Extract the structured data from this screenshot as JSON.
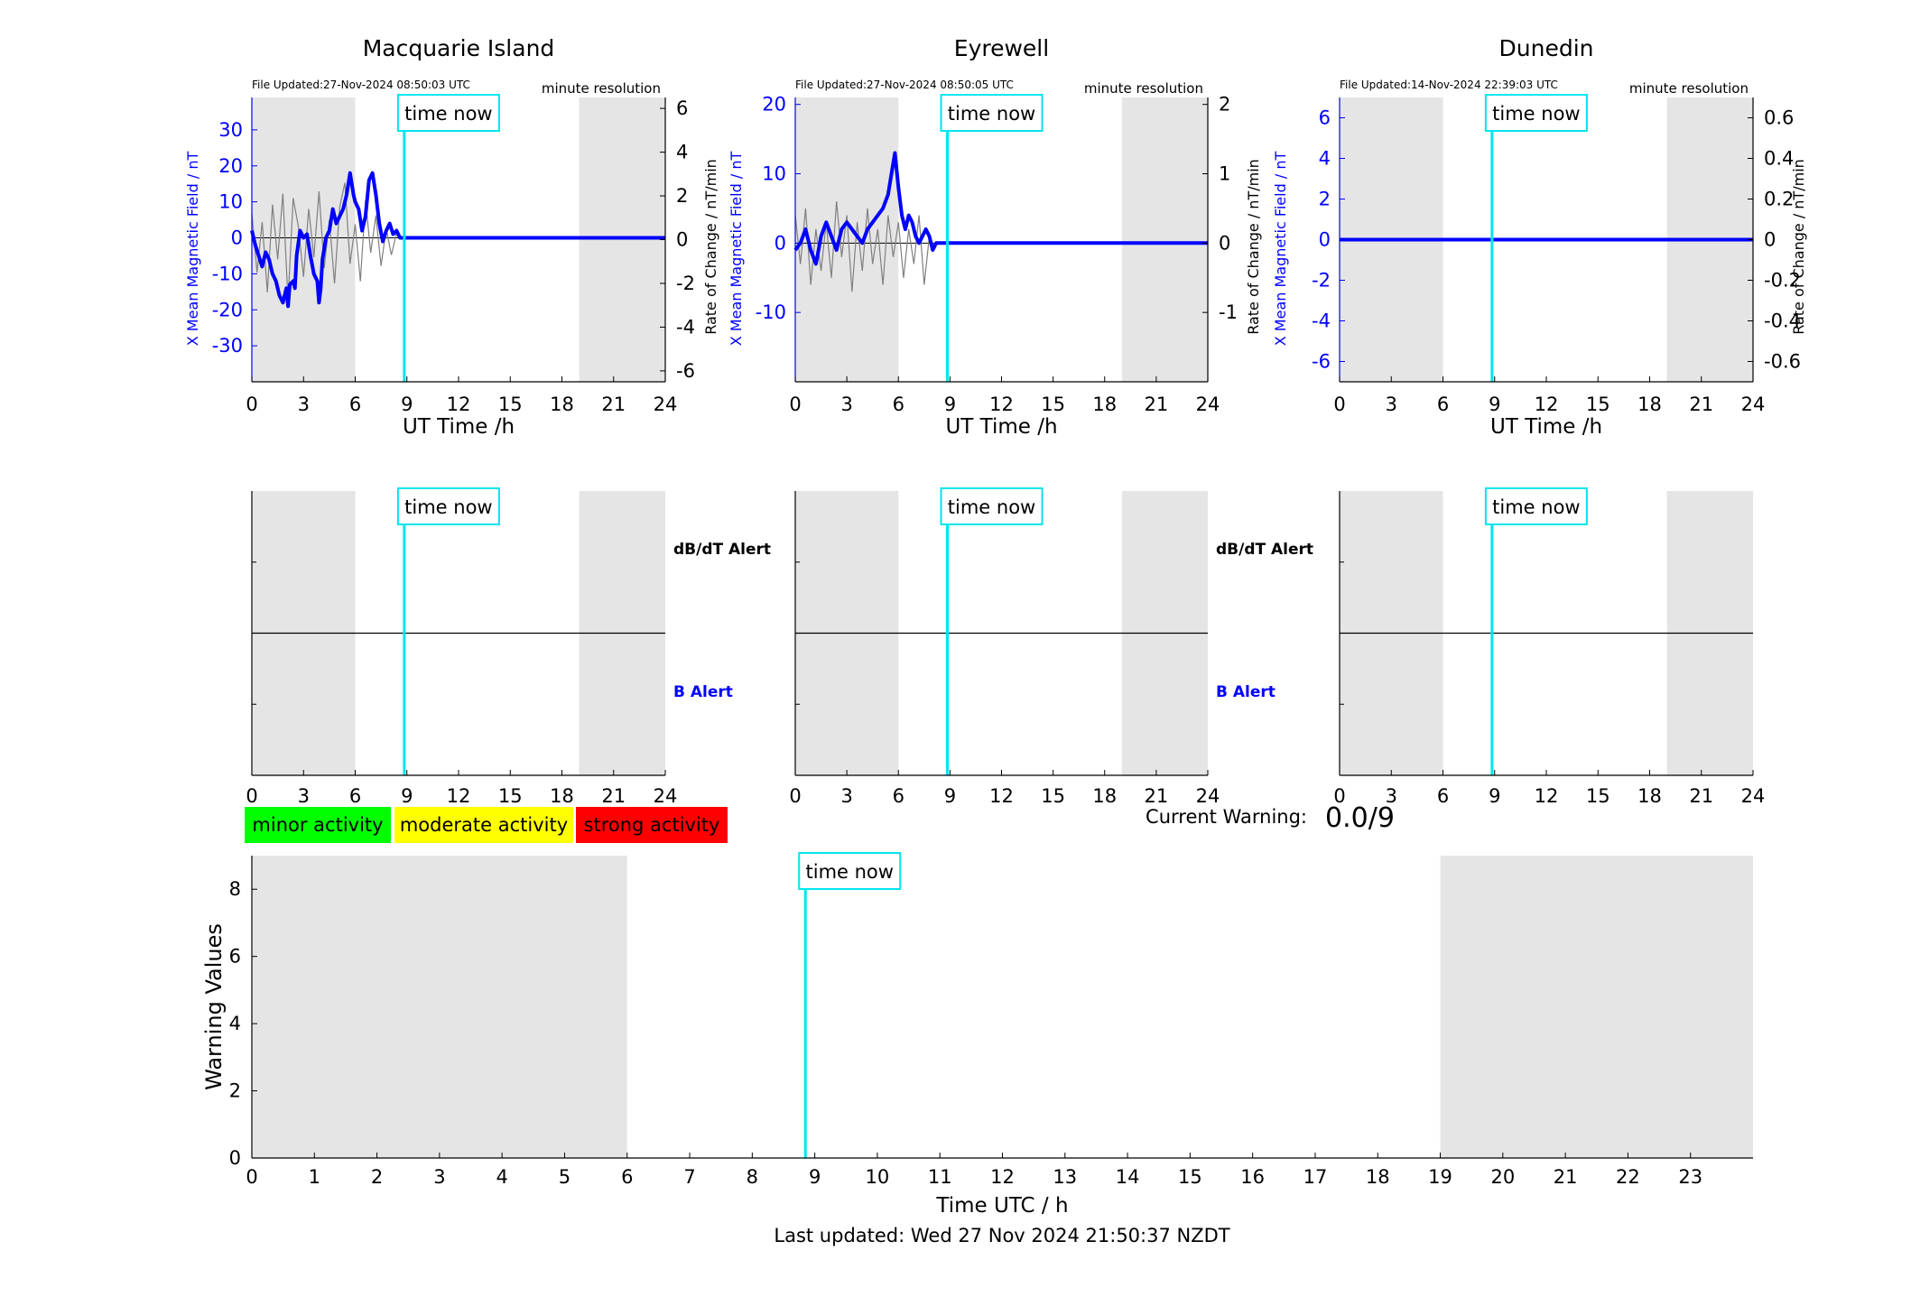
{
  "page": {
    "last_updated": "Last updated: Wed 27 Nov 2024 21:50:37 NZDT",
    "current_warning_label": "Current Warning:",
    "current_warning_value": "0.0/9"
  },
  "colors": {
    "x_field": "#0000ff",
    "rate": "#808080",
    "time_now": "#00e5ee",
    "shading": "#e5e5e5",
    "minor": "#00ff00",
    "moderate": "#ffff00",
    "strong": "#ff0000"
  },
  "legend": [
    {
      "label": "minor activity",
      "color": "#00ff00"
    },
    {
      "label": "moderate activity",
      "color": "#ffff00"
    },
    {
      "label": "strong activity",
      "color": "#ff0000"
    }
  ],
  "chart_data": [
    {
      "type": "line",
      "station": "Macquarie Island",
      "file_updated": "File Updated:27-Nov-2024 08:50:03 UTC",
      "resolution": "minute resolution",
      "time_now_label": "time now",
      "time_now_h": 8.85,
      "shaded_h": [
        [
          0,
          6
        ],
        [
          19,
          24
        ]
      ],
      "xlabel": "UT Time /h",
      "ylabel_left": "X Mean Magnetic Field / nT",
      "ylabel_right": "Rate of Change / nT/min",
      "xlim": [
        0,
        24
      ],
      "xticks": [
        0,
        3,
        6,
        9,
        12,
        15,
        18,
        21,
        24
      ],
      "ylim_left": [
        -40,
        39
      ],
      "yticks_left": [
        -30,
        -20,
        -10,
        0,
        10,
        20,
        30
      ],
      "ylim_right": [
        -6.5,
        6.5
      ],
      "yticks_right": [
        -6,
        -4,
        -2,
        0,
        2,
        4,
        6
      ],
      "series_x_field": {
        "x": [
          0,
          0.2,
          0.4,
          0.6,
          0.8,
          1.0,
          1.2,
          1.4,
          1.6,
          1.8,
          2.0,
          2.1,
          2.2,
          2.4,
          2.5,
          2.6,
          2.8,
          3.0,
          3.2,
          3.4,
          3.6,
          3.8,
          3.9,
          4.0,
          4.1,
          4.3,
          4.5,
          4.7,
          4.9,
          5.1,
          5.3,
          5.5,
          5.7,
          5.9,
          6.0,
          6.2,
          6.4,
          6.6,
          6.8,
          7.0,
          7.2,
          7.4,
          7.6,
          7.8,
          8.0,
          8.2,
          8.4,
          8.6,
          8.85,
          24
        ],
        "values": [
          2,
          -2,
          -5,
          -8,
          -4,
          -6,
          -10,
          -12,
          -16,
          -18,
          -14,
          -19,
          -13,
          -12,
          -14,
          -5,
          2,
          0,
          1,
          -5,
          -10,
          -12,
          -18,
          -14,
          -6,
          0,
          2,
          8,
          4,
          6,
          8,
          12,
          18,
          12,
          10,
          8,
          2,
          6,
          16,
          18,
          12,
          4,
          -1,
          2,
          4,
          1,
          2,
          0,
          0,
          0
        ]
      },
      "series_rate": {
        "x": [
          0,
          0.3,
          0.6,
          0.9,
          1.2,
          1.5,
          1.8,
          2.1,
          2.4,
          2.7,
          3.0,
          3.3,
          3.6,
          3.9,
          4.2,
          4.5,
          4.8,
          5.1,
          5.4,
          5.7,
          6.0,
          6.3,
          6.6,
          6.9,
          7.2,
          7.5,
          7.8,
          8.1,
          8.4,
          8.7
        ],
        "values": [
          1.2,
          -1.5,
          0.8,
          -2.4,
          1.6,
          -0.9,
          2.1,
          -2.8,
          1.9,
          0.6,
          -1.7,
          1.4,
          -0.8,
          2.2,
          -1.3,
          0.9,
          -2.0,
          1.5,
          2.6,
          -1.1,
          0.7,
          -1.9,
          1.8,
          -0.6,
          1.1,
          -1.2,
          0.5,
          -0.7,
          0.3,
          0.1
        ]
      }
    },
    {
      "type": "line",
      "station": "Eyrewell",
      "file_updated": "File Updated:27-Nov-2024 08:50:05 UTC",
      "resolution": "minute resolution",
      "time_now_label": "time now",
      "time_now_h": 8.85,
      "shaded_h": [
        [
          0,
          6
        ],
        [
          19,
          24
        ]
      ],
      "xlabel": "UT Time /h",
      "ylabel_left": "X Mean Magnetic Field / nT",
      "ylabel_right": "Rate of Change / nT/min",
      "xlim": [
        0,
        24
      ],
      "xticks": [
        0,
        3,
        6,
        9,
        12,
        15,
        18,
        21,
        24
      ],
      "ylim_left": [
        -20,
        21
      ],
      "yticks_left": [
        -10,
        0,
        10,
        20
      ],
      "ylim_right": [
        -2,
        2.1
      ],
      "yticks_right": [
        -1,
        0,
        1,
        2
      ],
      "series_x_field": {
        "x": [
          0,
          0.3,
          0.6,
          0.9,
          1.2,
          1.5,
          1.8,
          2.1,
          2.4,
          2.7,
          3.0,
          3.3,
          3.6,
          3.9,
          4.2,
          4.5,
          4.8,
          5.1,
          5.4,
          5.6,
          5.8,
          6.0,
          6.2,
          6.4,
          6.6,
          6.8,
          7.0,
          7.2,
          7.4,
          7.6,
          7.8,
          8.0,
          8.2,
          8.4,
          8.85,
          24
        ],
        "values": [
          -1,
          0,
          2,
          -1,
          -3,
          1,
          3,
          1,
          -1,
          2,
          3,
          2,
          1,
          0,
          2,
          3,
          4,
          5,
          7,
          10,
          13,
          8,
          4,
          2,
          4,
          3,
          1,
          0,
          1,
          2,
          1,
          -1,
          0,
          0,
          0,
          0
        ]
      },
      "series_rate": {
        "x": [
          0,
          0.3,
          0.6,
          0.9,
          1.2,
          1.5,
          1.8,
          2.1,
          2.4,
          2.7,
          3.0,
          3.3,
          3.6,
          3.9,
          4.2,
          4.5,
          4.8,
          5.1,
          5.4,
          5.7,
          6.0,
          6.3,
          6.6,
          6.9,
          7.2,
          7.5,
          7.8,
          8.1
        ],
        "values": [
          0.4,
          -0.3,
          0.5,
          -0.6,
          0.2,
          -0.4,
          0.3,
          -0.5,
          0.6,
          -0.2,
          0.4,
          -0.7,
          0.3,
          -0.4,
          0.5,
          -0.3,
          0.2,
          -0.6,
          0.4,
          -0.2,
          0.3,
          -0.5,
          0.2,
          -0.3,
          0.4,
          -0.6,
          0.1,
          -0.1
        ]
      }
    },
    {
      "type": "line",
      "station": "Dunedin",
      "file_updated": "File Updated:14-Nov-2024 22:39:03 UTC",
      "resolution": "minute resolution",
      "time_now_label": "time now",
      "time_now_h": 8.85,
      "shaded_h": [
        [
          0,
          6
        ],
        [
          19,
          24
        ]
      ],
      "xlabel": "UT Time /h",
      "ylabel_left": "X Mean Magnetic Field / nT",
      "ylabel_right": "Rate of Change / nT/min",
      "xlim": [
        0,
        24
      ],
      "xticks": [
        0,
        3,
        6,
        9,
        12,
        15,
        18,
        21,
        24
      ],
      "ylim_left": [
        -7,
        7
      ],
      "yticks_left": [
        -6,
        -4,
        -2,
        0,
        2,
        4,
        6
      ],
      "ylim_right": [
        -0.7,
        0.7
      ],
      "yticks_right": [
        -0.6,
        -0.4,
        -0.2,
        0,
        0.2,
        0.4,
        0.6
      ],
      "series_x_field": {
        "x": [
          0,
          24
        ],
        "values": [
          0,
          0
        ]
      },
      "series_rate": {
        "x": [],
        "values": []
      }
    },
    {
      "type": "line",
      "panel": "alerts",
      "station": "Macquarie Island",
      "time_now_label": "time now",
      "time_now_h": 8.85,
      "shaded_h": [
        [
          0,
          6
        ],
        [
          19,
          24
        ]
      ],
      "upper_label": "dB/dT Alert",
      "lower_label": "B Alert",
      "xlim": [
        0,
        24
      ],
      "xticks": [
        0,
        3,
        6,
        9,
        12,
        15,
        18,
        21,
        24
      ]
    },
    {
      "type": "line",
      "panel": "alerts",
      "station": "Eyrewell",
      "time_now_label": "time now",
      "time_now_h": 8.85,
      "shaded_h": [
        [
          0,
          6
        ],
        [
          19,
          24
        ]
      ],
      "upper_label": "dB/dT Alert",
      "lower_label": "B Alert",
      "xlim": [
        0,
        24
      ],
      "xticks": [
        0,
        3,
        6,
        9,
        12,
        15,
        18,
        21,
        24
      ]
    },
    {
      "type": "line",
      "panel": "alerts",
      "station": "Dunedin",
      "time_now_label": "time now",
      "time_now_h": 8.85,
      "shaded_h": [
        [
          0,
          6
        ],
        [
          19,
          24
        ]
      ],
      "upper_label": "",
      "lower_label": "",
      "xlim": [
        0,
        24
      ],
      "xticks": [
        0,
        3,
        6,
        9,
        12,
        15,
        18,
        21,
        24
      ]
    },
    {
      "type": "line",
      "panel": "warning",
      "time_now_label": "time now",
      "time_now_h": 8.85,
      "shaded_h": [
        [
          0,
          6
        ],
        [
          19,
          24
        ]
      ],
      "xlabel": "Time UTC / h",
      "ylabel": "Warning Values",
      "xlim": [
        0,
        24
      ],
      "xticks": [
        0,
        1,
        2,
        3,
        4,
        5,
        6,
        7,
        8,
        9,
        10,
        11,
        12,
        13,
        14,
        15,
        16,
        17,
        18,
        19,
        20,
        21,
        22,
        23
      ],
      "ylim": [
        0,
        9
      ],
      "yticks": [
        0,
        2,
        4,
        6,
        8
      ],
      "values": []
    }
  ]
}
